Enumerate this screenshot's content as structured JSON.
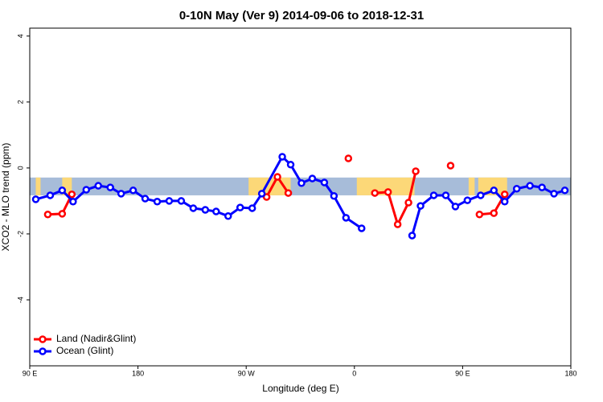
{
  "chart_data": {
    "type": "line",
    "title": "0-10N May (Ver 9)   2014-09-06 to 2018-12-31",
    "x_label": "Longitude (deg E)",
    "y_label": "XCO2 - MLO trend (ppm)",
    "xlim": [
      90,
      540
    ],
    "xticks": [
      {
        "value": 90,
        "label": "90 E"
      },
      {
        "value": 180,
        "label": "180"
      },
      {
        "value": 270,
        "label": "90 W"
      },
      {
        "value": 360,
        "label": "0"
      },
      {
        "value": 450,
        "label": "90 E"
      },
      {
        "value": 540,
        "label": "180"
      }
    ],
    "ylim": [
      -6,
      4.24
    ],
    "yticks": [
      -4,
      -2,
      0,
      2,
      4
    ],
    "band": {
      "ylim": [
        -0.83,
        -0.29
      ],
      "color": "#a7bcd9",
      "land_color": "#fcd878",
      "land": [
        [
          95,
          99
        ],
        [
          117,
          125
        ],
        [
          272,
          307
        ],
        [
          362,
          410
        ],
        [
          455,
          460
        ],
        [
          463,
          487
        ]
      ]
    },
    "legend": "bottom-left",
    "series": [
      {
        "name": "Land (Nadir&Glint)",
        "color": "#ff0000",
        "x": [
          105,
          117,
          125,
          null,
          287,
          296,
          305,
          null,
          355,
          null,
          377,
          388,
          396,
          405,
          411,
          null,
          440,
          null,
          464,
          476,
          485
        ],
        "values": [
          -1.41,
          -1.39,
          -0.8,
          null,
          -0.88,
          -0.27,
          -0.76,
          null,
          0.29,
          null,
          -0.76,
          -0.73,
          -1.71,
          -1.05,
          -0.1,
          null,
          0.07,
          null,
          -1.41,
          -1.37,
          -0.8
        ]
      },
      {
        "name": "Ocean (Glint)",
        "color": "#0000ff",
        "x": [
          95,
          107,
          117,
          126,
          137,
          147,
          157,
          166,
          176,
          186,
          196,
          206,
          216,
          226,
          236,
          245,
          255,
          265,
          275,
          283,
          300,
          307,
          316,
          325,
          335,
          343,
          353,
          366,
          null,
          408,
          415,
          426,
          436,
          444,
          454,
          465,
          476,
          485,
          495,
          506,
          516,
          526,
          535
        ],
        "values": [
          -0.95,
          -0.83,
          -0.68,
          -1.02,
          -0.66,
          -0.54,
          -0.59,
          -0.78,
          -0.68,
          -0.93,
          -1.02,
          -1.0,
          -1.0,
          -1.22,
          -1.27,
          -1.32,
          -1.46,
          -1.2,
          -1.22,
          -0.78,
          0.34,
          0.1,
          -0.46,
          -0.32,
          -0.44,
          -0.85,
          -1.51,
          -1.83,
          null,
          -2.05,
          -1.15,
          -0.83,
          -0.83,
          -1.17,
          -0.98,
          -0.83,
          -0.68,
          -1.02,
          -0.63,
          -0.54,
          -0.59,
          -0.78,
          -0.68
        ]
      }
    ]
  }
}
